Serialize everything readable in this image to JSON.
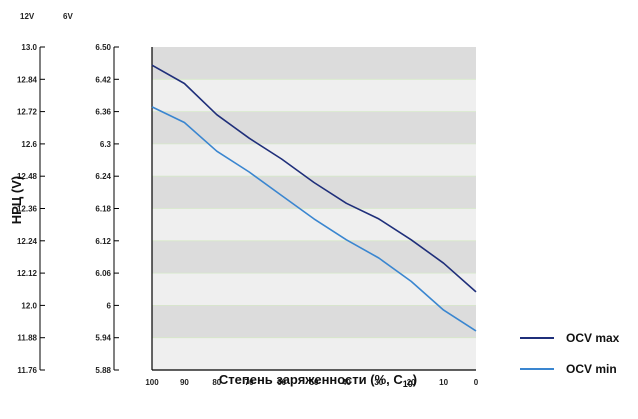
{
  "chart_data": {
    "type": "line",
    "title": "",
    "xlabel": "Степень заряженности (%, C",
    "xlabel_sub": "10",
    "xlabel_close": ")",
    "ylabel": "НРЦ (V)",
    "axis_headers": {
      "left": "12V",
      "right": "6V"
    },
    "x": [
      100,
      90,
      80,
      70,
      60,
      50,
      40,
      30,
      20,
      10,
      0
    ],
    "x_ticks": [
      "100",
      "90",
      "80",
      "70",
      "60",
      "50",
      "40",
      "30",
      "20",
      "10",
      "0"
    ],
    "xlim": [
      100,
      0
    ],
    "ylim": [
      11.76,
      13.0
    ],
    "y_ticks_12v": [
      "13.0",
      "12.84",
      "12.72",
      "12.6",
      "12.48",
      "12.36",
      "12.24",
      "12.12",
      "12.0",
      "11.88",
      "11.76"
    ],
    "y_ticks_6v": [
      "6.50",
      "6.42",
      "6.36",
      "6.3",
      "6.24",
      "6.18",
      "6.12",
      "6.06",
      "6",
      "5.94",
      "5.88"
    ],
    "series": [
      {
        "name": "OCV max",
        "color": "#1f2f7a",
        "values": [
          12.93,
          12.86,
          12.74,
          12.65,
          12.57,
          12.48,
          12.4,
          12.34,
          12.26,
          12.17,
          12.06
        ]
      },
      {
        "name": "OCV min",
        "color": "#3a86d0",
        "values": [
          12.77,
          12.71,
          12.6,
          12.52,
          12.43,
          12.34,
          12.26,
          12.19,
          12.1,
          11.99,
          11.91
        ]
      }
    ],
    "grid": true,
    "legend_position": "bottom-right"
  }
}
